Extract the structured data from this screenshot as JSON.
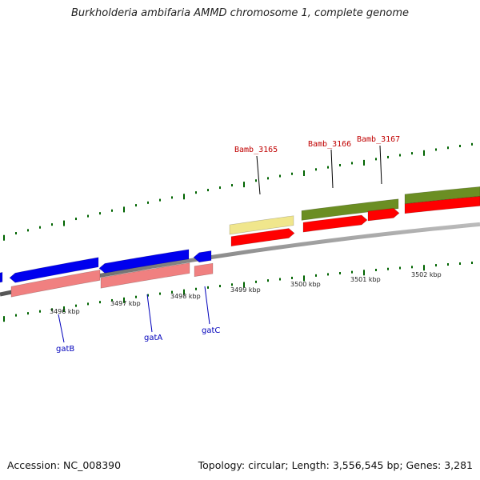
{
  "title": "Burkholderia ambifaria AMMD chromosome 1, complete genome",
  "footer": {
    "accession": "Accession: NC_008390",
    "topology": "Topology: circular; Length: 3,556,545 bp; Genes: 3,281"
  },
  "ruler": {
    "labels": [
      "3496 kbp",
      "3497 kbp",
      "3498 kbp",
      "3499 kbp",
      "3500 kbp",
      "3501 kbp",
      "3502 kbp"
    ]
  },
  "genes": {
    "top": [
      "Bamb_3165",
      "Bamb_3166",
      "Bamb_3167"
    ],
    "bottom": [
      "gatB",
      "gatA",
      "gatC"
    ]
  },
  "colors": {
    "backbone": "#888888",
    "forward_gene": "#ff0000",
    "reverse_gene": "#0000ee",
    "forward_cds_olive": "#6b8e23",
    "forward_cds_pale": "#f0e68c",
    "reverse_cds_salmon": "#f08080",
    "tick": "#006400"
  }
}
